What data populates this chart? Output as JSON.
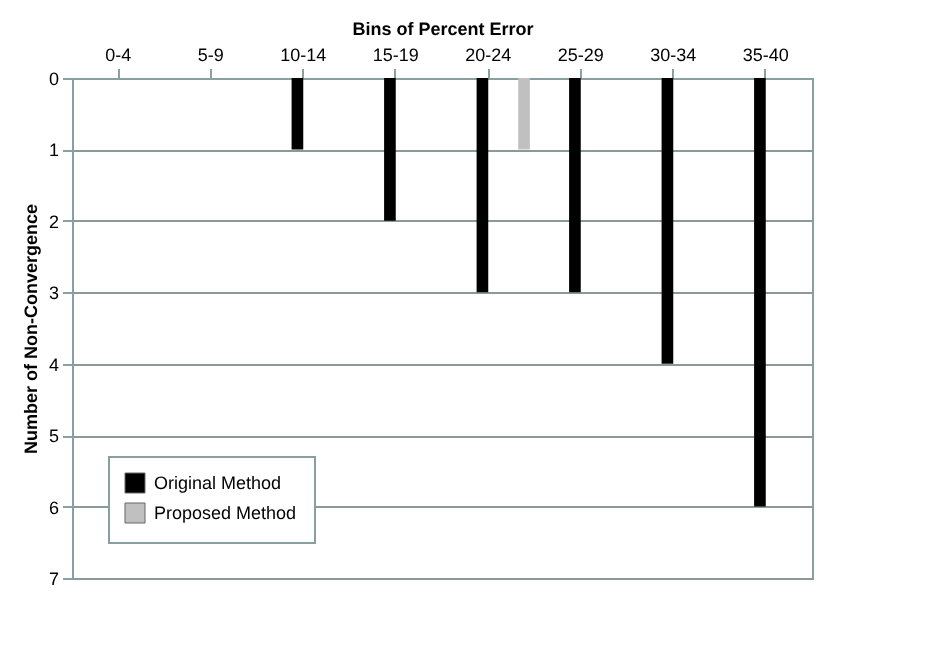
{
  "chart_data": {
    "type": "bar",
    "xlabel": "Bins of Percent Error",
    "ylabel": "Number of Non-Convergence",
    "categories": [
      "0-4",
      "5-9",
      "10-14",
      "15-19",
      "20-24",
      "25-29",
      "30-34",
      "35-40"
    ],
    "series": [
      {
        "name": "Original Method",
        "color": "#000000",
        "values": [
          0,
          0,
          1,
          2,
          3,
          3,
          4,
          6
        ]
      },
      {
        "name": "Proposed Method",
        "color": "#c0c0c0",
        "values": [
          0,
          0,
          0,
          0,
          1,
          0,
          0,
          0
        ]
      }
    ],
    "ylim": [
      7,
      0
    ],
    "yticks": [
      0,
      1,
      2,
      3,
      4,
      5,
      6,
      7
    ],
    "grid": "y",
    "legend": "bottom left"
  }
}
